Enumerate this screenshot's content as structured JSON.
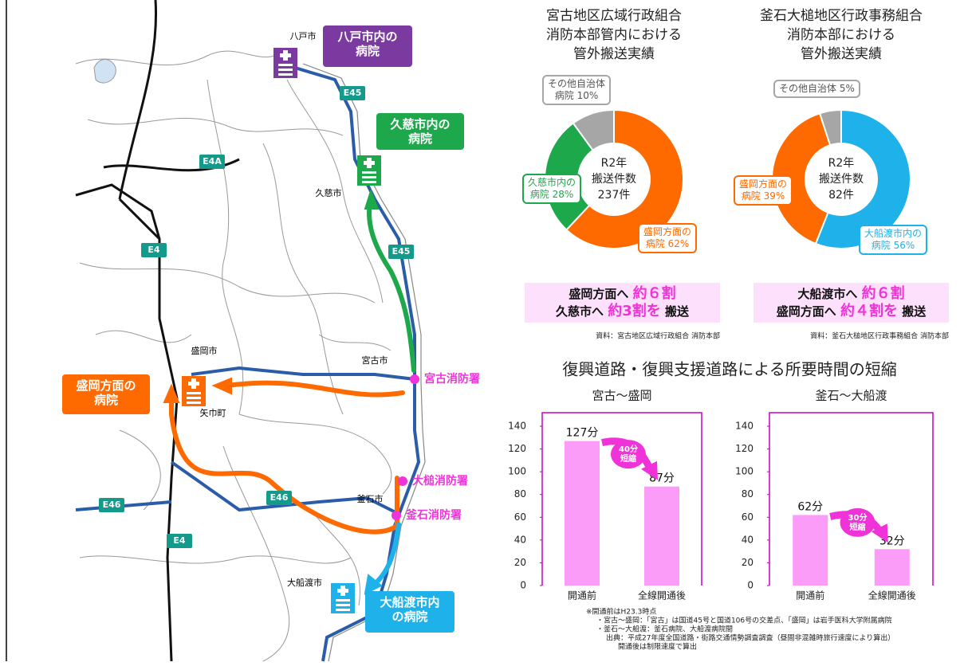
{
  "chart_data": [
    {
      "type": "donut",
      "title": [
        "宮古地区広域行政組合",
        "消防本部管内における",
        "管外搬送実績"
      ],
      "center_text": [
        "R2年",
        "搬送件数",
        "237件"
      ],
      "categories": [
        "盛岡方面の\n病院",
        "久慈市内の\n病院",
        "その他自治体\n病院"
      ],
      "values": [
        62,
        28,
        10
      ],
      "value_labels": [
        "62%",
        "28%",
        "10%"
      ],
      "colors": [
        "#ff6a00",
        "#1ea84c",
        "#a6a6a6"
      ],
      "summary": [
        [
          "盛岡方面へ ",
          "約６割"
        ],
        [
          "久慈市へ ",
          "約3割を",
          " 搬送"
        ]
      ],
      "source": "資料：宮古地区広域行政組合 消防本部"
    },
    {
      "type": "donut",
      "title": [
        "釜石大槌地区行政事務組合",
        "消防本部における",
        "管外搬送実績"
      ],
      "center_text": [
        "R2年",
        "搬送件数",
        "82件"
      ],
      "categories": [
        "大船渡市内の\n病院",
        "盛岡方面の\n病院",
        "その他自治体"
      ],
      "values": [
        56,
        39,
        5
      ],
      "value_labels": [
        "56%",
        "39%",
        "5%"
      ],
      "colors": [
        "#1fb2ea",
        "#ff6a00",
        "#a6a6a6"
      ],
      "summary": [
        [
          "大船渡市へ ",
          "約６割"
        ],
        [
          "盛岡方面へ ",
          "約４割を",
          " 搬送"
        ]
      ],
      "source": "資料：釜石大槌地区行政事務組合 消防本部"
    },
    {
      "type": "bar",
      "title": "宮古～盛岡",
      "categories": [
        "開通前",
        "全線開通後"
      ],
      "values": [
        127,
        87
      ],
      "value_labels": [
        "127分",
        "87分"
      ],
      "color": "#fb9cf9",
      "ylim": [
        0,
        140
      ],
      "yticks": [
        0,
        20,
        40,
        60,
        80,
        100,
        120,
        140
      ],
      "annotation": "40分\n短縮"
    },
    {
      "type": "bar",
      "title": "釜石～大船渡",
      "categories": [
        "開通前",
        "全線開通後"
      ],
      "values": [
        62,
        32
      ],
      "value_labels": [
        "62分",
        "32分"
      ],
      "color": "#fb9cf9",
      "ylim": [
        0,
        140
      ],
      "yticks": [
        0,
        20,
        40,
        60,
        80,
        100,
        120,
        140
      ],
      "annotation": "30分\n短縮"
    }
  ],
  "section_title": "復興道路・復興支援道路による所要時間の短縮",
  "notes": [
    "※開通前はH23.3時点",
    "・宮古～盛岡：「宮古」は国道45号と国道106号の交差点、「盛岡」は岩手医科大学附属病院",
    "・釜石～大船渡：釜石病院、大船渡病院間",
    "出典：平成27年度全国道路・街路交通情勢調査調査（昼間非混雑時旅行速度により算出）",
    "開通後は制限速度で算出"
  ],
  "map": {
    "cities": [
      "八戸市",
      "久慈市",
      "盛岡市",
      "矢巾町",
      "宮古市",
      "釜石市",
      "大船渡市"
    ],
    "roads": [
      "E45",
      "E4A",
      "E45",
      "E4",
      "E46",
      "E46",
      "E4"
    ],
    "hospitals": [
      "八戸市内の\n病院",
      "久慈市内の\n病院",
      "盛岡方面の\n病院",
      "大船渡市内\nの病院"
    ],
    "stations": [
      "宮古消防署",
      "大槌消防署",
      "釜石消防署"
    ]
  }
}
